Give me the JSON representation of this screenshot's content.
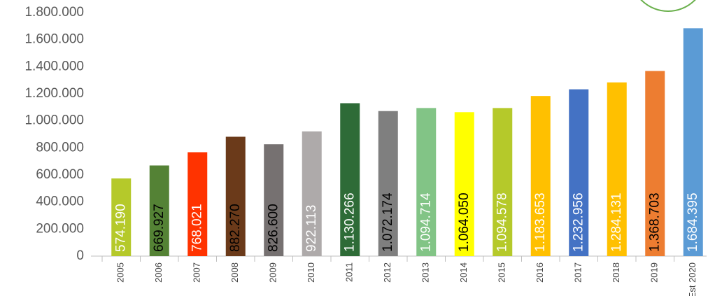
{
  "chart_data": {
    "type": "bar",
    "categories": [
      "2005",
      "2006",
      "2007",
      "2008",
      "2009",
      "2010",
      "2011",
      "2012",
      "2013",
      "2014",
      "2015",
      "2016",
      "2017",
      "2018",
      "2019",
      "Est 2020"
    ],
    "values": [
      574190,
      669927,
      768021,
      882270,
      826600,
      922113,
      1130266,
      1072174,
      1094714,
      1064050,
      1094578,
      1183653,
      1232956,
      1284131,
      1368703,
      1684395
    ],
    "value_labels": [
      "574.190",
      "669.927",
      "768.021",
      "882.270",
      "826.600",
      "922.113",
      "1.130.266",
      "1.072.174",
      "1.094.714",
      "1.064.050",
      "1.094.578",
      "1.183.653",
      "1.232.956",
      "1.284.131",
      "1.368.703",
      "1.684.395"
    ],
    "colors": [
      "#b5c92a",
      "#548235",
      "#ff3300",
      "#6b3a1a",
      "#767171",
      "#aeaaaa",
      "#2e6b37",
      "#7f7f7f",
      "#82c486",
      "#ffff00",
      "#b5c92a",
      "#ffc000",
      "#4472c4",
      "#ffc000",
      "#ed7d31",
      "#5b9bd5"
    ],
    "label_colors": [
      "#ffffff",
      "#000000",
      "#ffffff",
      "#000000",
      "#000000",
      "#ffffff",
      "#ffffff",
      "#000000",
      "#ffffff",
      "#000000",
      "#ffffff",
      "#ffffff",
      "#ffffff",
      "#ffffff",
      "#000000",
      "#ffffff"
    ],
    "ylim": [
      0,
      1800000
    ],
    "yticks": [
      0,
      {
        "value": 200000,
        "label": "200.000"
      },
      {
        "value": 400000,
        "label": "400.000"
      },
      {
        "value": 600000,
        "label": "600.000"
      },
      {
        "value": 800000,
        "label": "800.000"
      },
      {
        "value": 1000000,
        "label": "1.000.000"
      },
      {
        "value": 1200000,
        "label": "1.200.000"
      },
      {
        "value": 1400000,
        "label": "1.400.000"
      },
      {
        "value": 1600000,
        "label": "1.600.000"
      },
      {
        "value": 1800000,
        "label": "1.800.000"
      }
    ],
    "grid": false
  }
}
